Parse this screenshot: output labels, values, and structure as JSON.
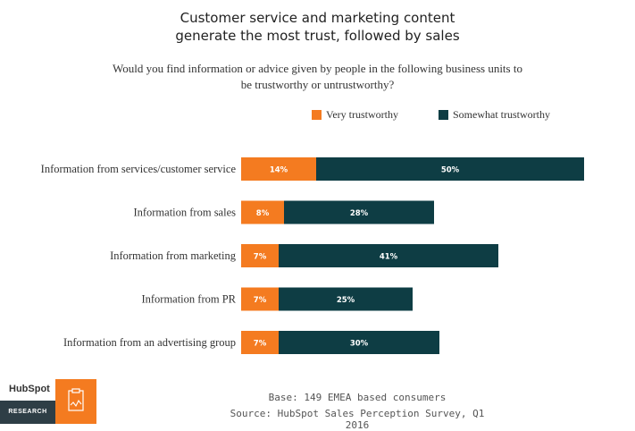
{
  "title_line1": "Customer service and marketing content",
  "title_line2": "generate the most trust, followed by sales",
  "subtitle_line1": "Would you find information or advice given by people in the following business units to",
  "subtitle_line2": "be trustworthy or untrustworthy?",
  "colors": {
    "very": "#f47b20",
    "somewhat": "#0e3d44"
  },
  "chart_data": {
    "type": "bar",
    "orientation": "horizontal",
    "stacked": true,
    "categories": [
      "Information from services/customer service",
      "Information from sales",
      "Information from marketing",
      "Information from PR",
      "Information from an advertising group"
    ],
    "series": [
      {
        "name": "Very trustworthy",
        "values": [
          14,
          8,
          7,
          7,
          7
        ],
        "labels": [
          "14%",
          "8%",
          "7%",
          "7%",
          "7%"
        ]
      },
      {
        "name": "Somewhat trustworthy",
        "values": [
          50,
          28,
          41,
          25,
          30
        ],
        "labels": [
          "50%",
          "28%",
          "41%",
          "25%",
          "30%"
        ]
      }
    ],
    "legend_position": "top-right",
    "grid": false
  },
  "footer": {
    "base": "Base: 149 EMEA based consumers",
    "source": "Source: HubSpot Sales Perception Survey, Q1 2016"
  },
  "brand": {
    "logo_text": "HubSpot",
    "tag": "RESEARCH",
    "icon": "chart-document-icon"
  }
}
